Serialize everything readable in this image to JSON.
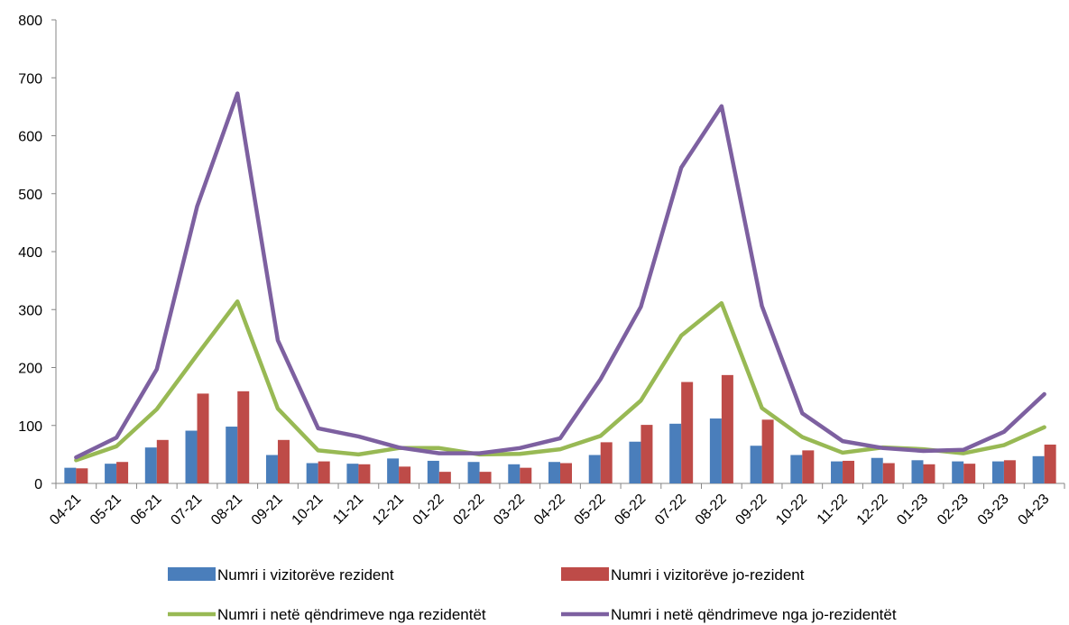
{
  "chart_data": {
    "type": "bar",
    "categories": [
      "04-21",
      "05-21",
      "06-21",
      "07-21",
      "08-21",
      "09-21",
      "10-21",
      "11-21",
      "12-21",
      "01-22",
      "02-22",
      "03-22",
      "04-22",
      "05-22",
      "06-22",
      "07-22",
      "08-22",
      "09-22",
      "10-22",
      "11-22",
      "12-22",
      "01-23",
      "02-23",
      "03-23",
      "04-23"
    ],
    "ylim": [
      0,
      800
    ],
    "yticks": [
      0,
      100,
      200,
      300,
      400,
      500,
      600,
      700,
      800
    ],
    "grid": false,
    "legend_position": "bottom",
    "series": [
      {
        "name": "Numri i vizitorëve rezident",
        "type": "bar",
        "color": "#4a7ebb",
        "values": [
          27,
          34,
          62,
          91,
          98,
          49,
          35,
          34,
          43,
          39,
          37,
          33,
          37,
          49,
          72,
          103,
          112,
          65,
          49,
          38,
          44,
          40,
          38,
          38,
          47
        ]
      },
      {
        "name": "Numri i vizitorëve jo-rezident",
        "type": "bar",
        "color": "#be4b48",
        "values": [
          26,
          37,
          75,
          155,
          159,
          75,
          38,
          33,
          29,
          20,
          20,
          27,
          35,
          71,
          101,
          175,
          187,
          110,
          57,
          39,
          35,
          33,
          34,
          40,
          67
        ]
      },
      {
        "name": "Numri i netë qëndrimeve nga rezidentët",
        "type": "line",
        "color": "#98b954",
        "values": [
          40,
          64,
          128,
          222,
          314,
          129,
          57,
          50,
          61,
          61,
          50,
          51,
          59,
          82,
          143,
          255,
          311,
          130,
          80,
          53,
          62,
          59,
          52,
          66,
          97
        ]
      },
      {
        "name": "Numri i netë qëndrimeve nga jo-rezidentët",
        "type": "line",
        "color": "#7d60a0",
        "values": [
          45,
          79,
          197,
          478,
          673,
          247,
          95,
          81,
          62,
          52,
          52,
          61,
          78,
          180,
          305,
          545,
          651,
          306,
          121,
          73,
          61,
          56,
          58,
          89,
          154
        ]
      }
    ]
  }
}
